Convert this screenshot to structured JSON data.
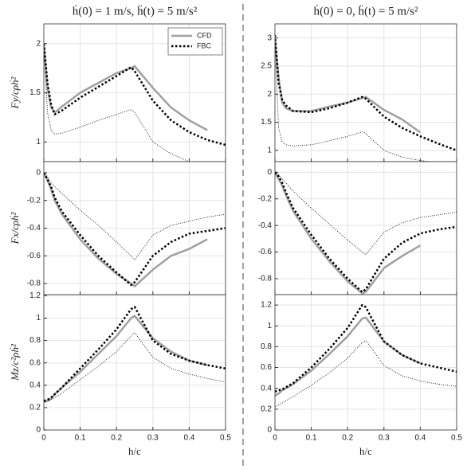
{
  "chart_data": [
    {
      "type": "line",
      "title": "ḣ(0) = 1 m/s, ḧ(t) = 5 m/s²",
      "ylabel": "Fy/cρḣ²",
      "x": [
        0,
        0.01,
        0.02,
        0.03,
        0.05,
        0.1,
        0.15,
        0.2,
        0.24,
        0.25,
        0.3,
        0.35,
        0.4,
        0.45,
        0.5
      ],
      "xlim": [
        0,
        0.5
      ],
      "xticks": [
        0,
        0.1,
        0.2,
        0.3,
        0.4,
        0.5
      ],
      "ylim": [
        0.8,
        2.2
      ],
      "yticks": [
        1,
        1.5,
        2
      ],
      "grid": true,
      "legend": "upper right",
      "series": [
        {
          "name": "CFD",
          "color": "#a0a0a0",
          "linestyle": "solid",
          "linewidth": 2.5,
          "values": [
            2.0,
            1.55,
            1.35,
            1.3,
            1.36,
            1.5,
            1.6,
            1.7,
            1.75,
            1.77,
            1.55,
            1.35,
            1.22,
            1.12,
            null
          ]
        },
        {
          "name": "FBC",
          "color": "#000000",
          "linestyle": "dotted",
          "linewidth": 2.5,
          "values": [
            2.0,
            1.6,
            1.38,
            1.28,
            1.32,
            1.45,
            1.56,
            1.67,
            1.76,
            1.72,
            1.42,
            1.22,
            1.1,
            1.02,
            0.97
          ]
        },
        {
          "color": "#000000",
          "linestyle": "dotted",
          "linewidth": 0.8,
          "values": [
            2.0,
            1.3,
            1.12,
            1.08,
            1.09,
            1.15,
            1.22,
            1.28,
            1.33,
            1.3,
            1.0,
            0.88,
            0.8,
            0.76,
            0.73
          ]
        }
      ]
    },
    {
      "type": "line",
      "ylabel": "Fx/cρḣ²",
      "x": [
        0,
        0.01,
        0.02,
        0.03,
        0.05,
        0.1,
        0.15,
        0.2,
        0.24,
        0.25,
        0.3,
        0.35,
        0.4,
        0.45,
        0.5
      ],
      "xlim": [
        0,
        0.5
      ],
      "xticks": [
        0,
        0.1,
        0.2,
        0.3,
        0.4,
        0.5
      ],
      "ylim": [
        -0.88,
        0.08
      ],
      "yticks": [
        -0.8,
        -0.6,
        -0.4,
        -0.2,
        0
      ],
      "grid": true,
      "series": [
        {
          "color": "#a0a0a0",
          "linestyle": "solid",
          "linewidth": 2.5,
          "values": [
            0,
            -0.05,
            -0.12,
            -0.2,
            -0.3,
            -0.48,
            -0.62,
            -0.73,
            -0.8,
            -0.82,
            -0.7,
            -0.6,
            -0.55,
            -0.48,
            null
          ]
        },
        {
          "color": "#000000",
          "linestyle": "dotted",
          "linewidth": 2.5,
          "values": [
            0,
            -0.05,
            -0.1,
            -0.18,
            -0.28,
            -0.45,
            -0.6,
            -0.72,
            -0.81,
            -0.79,
            -0.6,
            -0.5,
            -0.44,
            -0.42,
            -0.4
          ]
        },
        {
          "color": "#000000",
          "linestyle": "dotted",
          "linewidth": 0.8,
          "values": [
            0,
            -0.03,
            -0.07,
            -0.1,
            -0.15,
            -0.27,
            -0.38,
            -0.5,
            -0.6,
            -0.63,
            -0.45,
            -0.38,
            -0.35,
            -0.32,
            -0.3
          ]
        }
      ]
    },
    {
      "type": "line",
      "ylabel": "Mz/c²ρḣ²",
      "xlabel": "h/c",
      "x": [
        0,
        0.01,
        0.02,
        0.03,
        0.05,
        0.1,
        0.15,
        0.2,
        0.24,
        0.25,
        0.3,
        0.35,
        0.4,
        0.45,
        0.5
      ],
      "xlim": [
        0,
        0.5
      ],
      "xticks": [
        0,
        0.1,
        0.2,
        0.3,
        0.4,
        0.5
      ],
      "ylim": [
        0,
        1.21
      ],
      "yticks": [
        0,
        0.2,
        0.4,
        0.6,
        0.8,
        1,
        1.2
      ],
      "grid": true,
      "series": [
        {
          "color": "#a0a0a0",
          "linestyle": "solid",
          "linewidth": 2.5,
          "values": [
            0.25,
            0.26,
            0.28,
            0.32,
            0.38,
            0.52,
            0.68,
            0.84,
            1.0,
            1.02,
            0.82,
            0.7,
            0.62,
            0.58,
            null
          ]
        },
        {
          "color": "#000000",
          "linestyle": "dotted",
          "linewidth": 2.5,
          "values": [
            0.26,
            0.27,
            0.29,
            0.32,
            0.38,
            0.55,
            0.72,
            0.9,
            1.08,
            1.1,
            0.8,
            0.68,
            0.62,
            0.58,
            0.55
          ]
        },
        {
          "color": "#000000",
          "linestyle": "dotted",
          "linewidth": 0.8,
          "values": [
            0.25,
            0.26,
            0.27,
            0.29,
            0.33,
            0.45,
            0.57,
            0.7,
            0.84,
            0.87,
            0.65,
            0.55,
            0.5,
            0.46,
            0.43
          ]
        }
      ]
    },
    {
      "type": "line",
      "title": "ḣ(0) = 0, ḧ(t) = 5 m/s²",
      "x": [
        0,
        0.01,
        0.02,
        0.03,
        0.05,
        0.1,
        0.15,
        0.2,
        0.24,
        0.25,
        0.3,
        0.35,
        0.4,
        0.45,
        0.5
      ],
      "xlim": [
        0,
        0.5
      ],
      "xticks": [
        0,
        0.1,
        0.2,
        0.3,
        0.4,
        0.5
      ],
      "ylim": [
        0.8,
        3.25
      ],
      "yticks": [
        1,
        1.5,
        2,
        2.5,
        3
      ],
      "grid": true,
      "series": [
        {
          "color": "#a0a0a0",
          "linestyle": "solid",
          "linewidth": 2.5,
          "values": [
            3.0,
            2.3,
            1.85,
            1.75,
            1.7,
            1.7,
            1.78,
            1.85,
            1.93,
            1.95,
            1.72,
            1.55,
            1.32,
            null,
            null
          ]
        },
        {
          "color": "#000000",
          "linestyle": "dotted",
          "linewidth": 2.5,
          "values": [
            3.05,
            2.2,
            1.9,
            1.8,
            1.7,
            1.68,
            1.75,
            1.85,
            1.95,
            1.92,
            1.6,
            1.4,
            1.25,
            1.12,
            1.0
          ]
        },
        {
          "color": "#000000",
          "linestyle": "dotted",
          "linewidth": 0.8,
          "values": [
            3.0,
            1.4,
            1.15,
            1.1,
            1.08,
            1.1,
            1.17,
            1.25,
            1.33,
            1.3,
            1.0,
            0.88,
            0.82,
            0.78,
            0.76
          ]
        }
      ]
    },
    {
      "type": "line",
      "x": [
        0,
        0.01,
        0.02,
        0.03,
        0.05,
        0.1,
        0.15,
        0.2,
        0.24,
        0.25,
        0.3,
        0.35,
        0.4,
        0.45,
        0.5
      ],
      "xlim": [
        0,
        0.5
      ],
      "xticks": [
        0,
        0.1,
        0.2,
        0.3,
        0.4,
        0.5
      ],
      "ylim": [
        -0.92,
        0.08
      ],
      "yticks": [
        -0.8,
        -0.6,
        -0.4,
        -0.2,
        0
      ],
      "grid": true,
      "series": [
        {
          "color": "#a0a0a0",
          "linestyle": "solid",
          "linewidth": 2.5,
          "values": [
            0,
            -0.05,
            -0.1,
            -0.17,
            -0.29,
            -0.5,
            -0.67,
            -0.82,
            -0.91,
            -0.9,
            -0.72,
            -0.63,
            -0.55,
            null,
            null
          ]
        },
        {
          "color": "#000000",
          "linestyle": "dotted",
          "linewidth": 2.5,
          "values": [
            0,
            -0.03,
            -0.08,
            -0.15,
            -0.27,
            -0.47,
            -0.65,
            -0.8,
            -0.9,
            -0.88,
            -0.65,
            -0.53,
            -0.46,
            -0.43,
            -0.41
          ]
        },
        {
          "color": "#000000",
          "linestyle": "dotted",
          "linewidth": 0.8,
          "values": [
            0,
            -0.02,
            -0.05,
            -0.08,
            -0.14,
            -0.27,
            -0.39,
            -0.51,
            -0.6,
            -0.62,
            -0.45,
            -0.38,
            -0.34,
            -0.32,
            -0.3
          ]
        }
      ]
    },
    {
      "type": "line",
      "xlabel": "h/c",
      "x": [
        0,
        0.01,
        0.02,
        0.03,
        0.05,
        0.1,
        0.15,
        0.2,
        0.24,
        0.25,
        0.3,
        0.35,
        0.4,
        0.45,
        0.5
      ],
      "xlim": [
        0,
        0.5
      ],
      "xticks": [
        0,
        0.1,
        0.2,
        0.3,
        0.4,
        0.5
      ],
      "ylim": [
        0,
        1.3
      ],
      "yticks": [
        0,
        0.2,
        0.4,
        0.6,
        0.8,
        1,
        1.2
      ],
      "grid": true,
      "series": [
        {
          "color": "#a0a0a0",
          "linestyle": "solid",
          "linewidth": 2.5,
          "values": [
            0.33,
            0.35,
            0.38,
            0.4,
            0.44,
            0.57,
            0.73,
            0.9,
            1.07,
            1.08,
            0.85,
            0.72,
            0.64,
            null,
            null
          ]
        },
        {
          "color": "#000000",
          "linestyle": "dotted",
          "linewidth": 2.5,
          "values": [
            0.37,
            0.38,
            0.39,
            0.41,
            0.45,
            0.6,
            0.78,
            0.98,
            1.2,
            1.18,
            0.85,
            0.72,
            0.64,
            0.6,
            0.56
          ]
        },
        {
          "color": "#000000",
          "linestyle": "dotted",
          "linewidth": 0.8,
          "values": [
            0.22,
            0.24,
            0.26,
            0.28,
            0.32,
            0.43,
            0.55,
            0.69,
            0.84,
            0.86,
            0.62,
            0.52,
            0.47,
            0.44,
            0.42
          ]
        }
      ]
    }
  ]
}
